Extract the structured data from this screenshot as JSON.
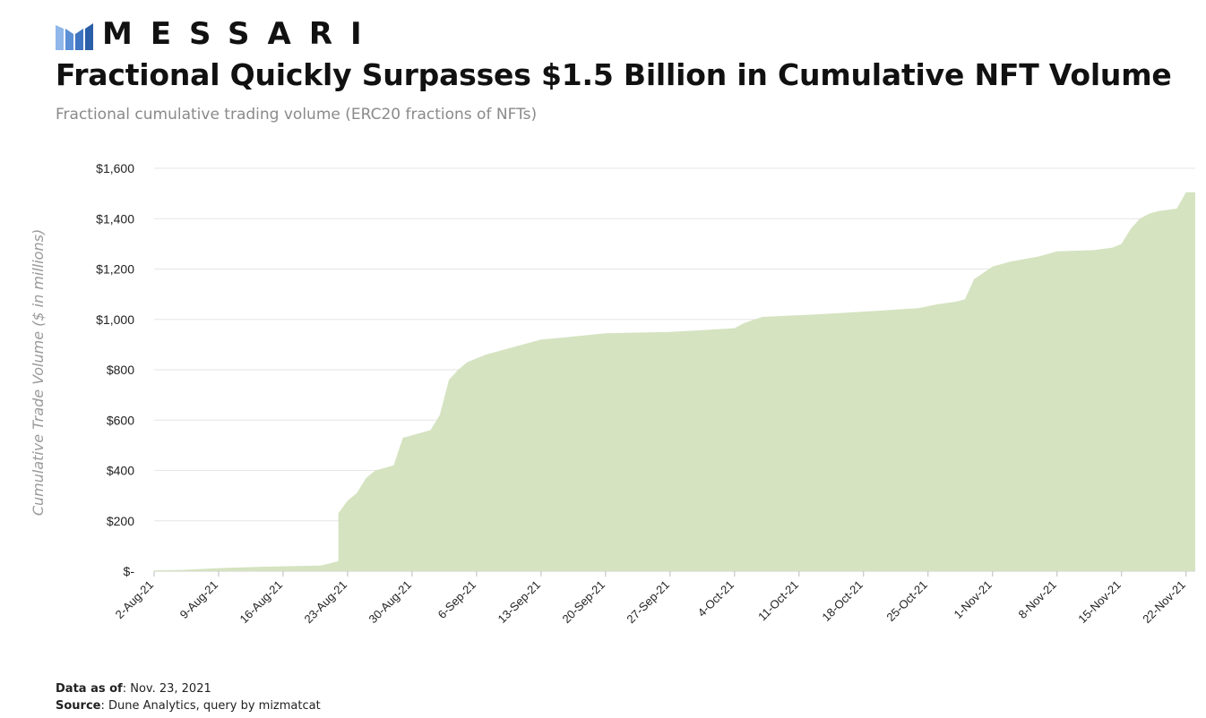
{
  "brand": {
    "logo_text": "MESSARI",
    "logo_icon": "messari-logo-icon",
    "accent": "#5b8fd6"
  },
  "header": {
    "title": "Fractional Quickly Surpasses $1.5 Billion in Cumulative NFT Volume",
    "subtitle": "Fractional cumulative trading volume (ERC20 fractions of NFTs)"
  },
  "footer": {
    "data_as_of_label": "Data as of",
    "data_as_of_value": ": Nov. 23, 2021",
    "source_label": "Source",
    "source_value": ": Dune Analytics, query by mizmatcat"
  },
  "chart_data": {
    "type": "area",
    "title": "",
    "xlabel": "",
    "ylabel": "Cumulative Trade Volume ($ in millions)",
    "ylim": [
      0,
      1600
    ],
    "yticks": [
      0,
      200,
      400,
      600,
      800,
      1000,
      1200,
      1400,
      1600
    ],
    "ytick_labels": [
      "$-",
      "$200",
      "$400",
      "$600",
      "$800",
      "$1,000",
      "$1,200",
      "$1,400",
      "$1,600"
    ],
    "xlim": [
      "2021-08-02",
      "2021-11-23"
    ],
    "xtick_labels": [
      "2-Aug-21",
      "9-Aug-21",
      "16-Aug-21",
      "23-Aug-21",
      "30-Aug-21",
      "6-Sep-21",
      "13-Sep-21",
      "20-Sep-21",
      "27-Sep-21",
      "4-Oct-21",
      "11-Oct-21",
      "18-Oct-21",
      "25-Oct-21",
      "1-Nov-21",
      "8-Nov-21",
      "15-Nov-21",
      "22-Nov-21"
    ],
    "xtick_dates": [
      "2021-08-02",
      "2021-08-09",
      "2021-08-16",
      "2021-08-23",
      "2021-08-30",
      "2021-09-06",
      "2021-09-13",
      "2021-09-20",
      "2021-09-27",
      "2021-10-04",
      "2021-10-11",
      "2021-10-18",
      "2021-10-25",
      "2021-11-01",
      "2021-11-08",
      "2021-11-15",
      "2021-11-22"
    ],
    "grid": true,
    "fill_color": "#d5e3c1",
    "grid_color": "#e6e6e6",
    "series": [
      {
        "x": [
          "2021-08-02",
          "2021-08-05",
          "2021-08-09",
          "2021-08-14",
          "2021-08-20",
          "2021-08-21",
          "2021-08-22",
          "2021-08-22",
          "2021-08-23",
          "2021-08-24",
          "2021-08-25",
          "2021-08-26",
          "2021-08-28",
          "2021-08-29",
          "2021-09-01",
          "2021-09-02",
          "2021-09-03",
          "2021-09-04",
          "2021-09-05",
          "2021-09-07",
          "2021-09-09",
          "2021-09-11",
          "2021-09-13",
          "2021-09-16",
          "2021-09-20",
          "2021-09-27",
          "2021-10-04",
          "2021-10-05",
          "2021-10-07",
          "2021-10-13",
          "2021-10-20",
          "2021-10-24",
          "2021-10-26",
          "2021-10-28",
          "2021-10-29",
          "2021-10-30",
          "2021-11-01",
          "2021-11-03",
          "2021-11-06",
          "2021-11-08",
          "2021-11-12",
          "2021-11-14",
          "2021-11-15",
          "2021-11-16",
          "2021-11-17",
          "2021-11-18",
          "2021-11-19",
          "2021-11-21",
          "2021-11-22",
          "2021-11-23"
        ],
        "y": [
          3,
          5,
          12,
          18,
          22,
          30,
          40,
          230,
          280,
          310,
          370,
          400,
          420,
          530,
          560,
          620,
          760,
          800,
          830,
          860,
          880,
          900,
          920,
          930,
          945,
          950,
          965,
          985,
          1010,
          1020,
          1035,
          1045,
          1060,
          1070,
          1080,
          1160,
          1210,
          1230,
          1250,
          1270,
          1275,
          1285,
          1300,
          1360,
          1400,
          1420,
          1430,
          1440,
          1505,
          1505
        ]
      }
    ]
  }
}
